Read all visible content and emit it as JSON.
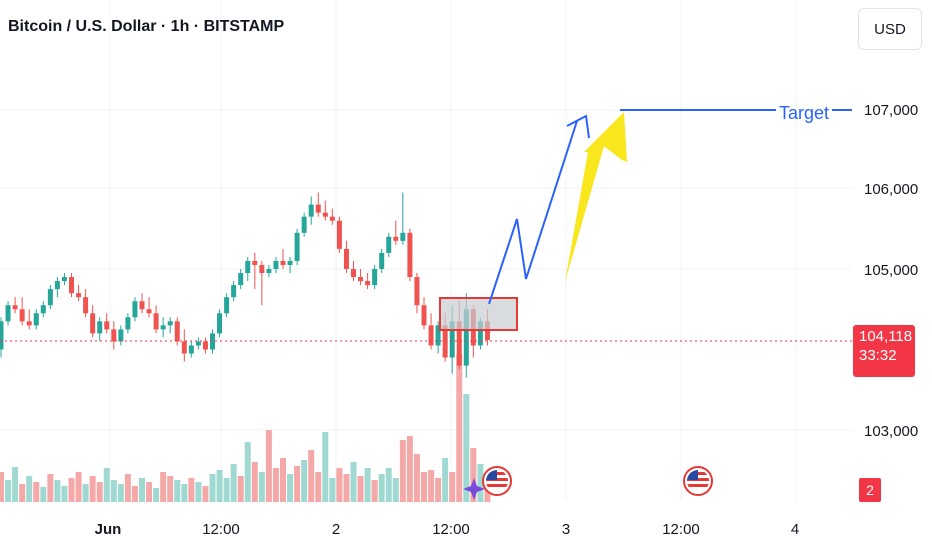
{
  "header": {
    "title": "Bitcoin / U.S. Dollar · 1h · BITSTAMP",
    "currency_button": "USD"
  },
  "price_tag": {
    "price": "104,118",
    "countdown": "33:32"
  },
  "events_badge": "2",
  "colors": {
    "up": "#26a69a",
    "down": "#ef5350",
    "vol_up": "#9fd9d2",
    "vol_down": "#f4a9a8",
    "projection": "#2962ff",
    "arrow": "#f8e71c",
    "box": "#e53935",
    "price_line": "#f23645"
  },
  "annotations": {
    "target_label": "Target",
    "target_price": 107000,
    "box_range": [
      104150,
      104680
    ]
  },
  "chart_data": {
    "type": "candlestick",
    "title": "Bitcoin / U.S. Dollar · 1h · BITSTAMP",
    "current_price": 104118,
    "y_ticks": [
      "103,000",
      "105,000",
      "106,000",
      "107,000"
    ],
    "y_tick_values": [
      103000,
      105000,
      106000,
      107000
    ],
    "ylim": [
      102200,
      107800
    ],
    "x_labels": [
      "Jun",
      "12:00",
      "2",
      "12:00",
      "3",
      "12:00",
      "4"
    ],
    "grid": true,
    "candles": [
      [
        104000,
        104400,
        103900,
        104350
      ],
      [
        104350,
        104600,
        104300,
        104550
      ],
      [
        104550,
        104650,
        104450,
        104500
      ],
      [
        104500,
        104650,
        104300,
        104350
      ],
      [
        104350,
        104500,
        104250,
        104300
      ],
      [
        104300,
        104500,
        104250,
        104450
      ],
      [
        104450,
        104600,
        104400,
        104550
      ],
      [
        104550,
        104800,
        104500,
        104750
      ],
      [
        104750,
        104900,
        104650,
        104850
      ],
      [
        104850,
        104950,
        104800,
        104900
      ],
      [
        104900,
        104950,
        104650,
        104700
      ],
      [
        104700,
        104800,
        104600,
        104650
      ],
      [
        104650,
        104750,
        104400,
        104450
      ],
      [
        104450,
        104550,
        104150,
        104200
      ],
      [
        104200,
        104400,
        104100,
        104350
      ],
      [
        104350,
        104450,
        104200,
        104250
      ],
      [
        104250,
        104350,
        104000,
        104100
      ],
      [
        104100,
        104300,
        104050,
        104250
      ],
      [
        104250,
        104450,
        104200,
        104400
      ],
      [
        104400,
        104650,
        104350,
        104600
      ],
      [
        104600,
        104700,
        104450,
        104500
      ],
      [
        104500,
        104650,
        104400,
        104450
      ],
      [
        104450,
        104550,
        104200,
        104250
      ],
      [
        104250,
        104400,
        104150,
        104300
      ],
      [
        104300,
        104400,
        104200,
        104350
      ],
      [
        104350,
        104400,
        104050,
        104100
      ],
      [
        104100,
        104250,
        103850,
        103950
      ],
      [
        103950,
        104100,
        103900,
        104050
      ],
      [
        104050,
        104150,
        104000,
        104100
      ],
      [
        104100,
        104150,
        103950,
        104000
      ],
      [
        104000,
        104250,
        103950,
        104200
      ],
      [
        104200,
        104500,
        104150,
        104450
      ],
      [
        104450,
        104700,
        104400,
        104650
      ],
      [
        104650,
        104850,
        104600,
        104800
      ],
      [
        104800,
        105000,
        104750,
        104950
      ],
      [
        104950,
        105150,
        104850,
        105100
      ],
      [
        105100,
        105200,
        104750,
        105050
      ],
      [
        105050,
        105100,
        104550,
        104950
      ],
      [
        104950,
        105050,
        104900,
        105000
      ],
      [
        105000,
        105150,
        104950,
        105100
      ],
      [
        105100,
        105250,
        105000,
        105050
      ],
      [
        105050,
        105150,
        104950,
        105100
      ],
      [
        105100,
        105500,
        105050,
        105450
      ],
      [
        105450,
        105700,
        105400,
        105650
      ],
      [
        105650,
        105900,
        105550,
        105800
      ],
      [
        105800,
        105950,
        105650,
        105700
      ],
      [
        105700,
        105850,
        105600,
        105650
      ],
      [
        105650,
        105750,
        105550,
        105600
      ],
      [
        105600,
        105650,
        105200,
        105250
      ],
      [
        105250,
        105350,
        104950,
        105000
      ],
      [
        105000,
        105100,
        104850,
        104900
      ],
      [
        104900,
        105000,
        104800,
        104850
      ],
      [
        104850,
        104950,
        104750,
        104800
      ],
      [
        104800,
        105050,
        104750,
        105000
      ],
      [
        105000,
        105250,
        104950,
        105200
      ],
      [
        105200,
        105450,
        105150,
        105400
      ],
      [
        105400,
        105600,
        105300,
        105350
      ],
      [
        105350,
        105950,
        105300,
        105450
      ],
      [
        105450,
        105500,
        104850,
        104900
      ],
      [
        104900,
        104950,
        104450,
        104550
      ],
      [
        104550,
        104650,
        104250,
        104300
      ],
      [
        104300,
        104450,
        104000,
        104050
      ],
      [
        104050,
        104350,
        103950,
        104300
      ],
      [
        104300,
        104450,
        103850,
        103900
      ],
      [
        103900,
        104550,
        103700,
        104350
      ],
      [
        104350,
        104600,
        103750,
        103800
      ],
      [
        103800,
        104700,
        103650,
        104500
      ],
      [
        104500,
        104550,
        103900,
        104050
      ],
      [
        104050,
        104400,
        104000,
        104350
      ],
      [
        104350,
        104500,
        104050,
        104118
      ]
    ],
    "volume": [
      [
        30,
        "down"
      ],
      [
        22,
        "up"
      ],
      [
        35,
        "up"
      ],
      [
        18,
        "down"
      ],
      [
        26,
        "up"
      ],
      [
        20,
        "down"
      ],
      [
        15,
        "up"
      ],
      [
        28,
        "down"
      ],
      [
        22,
        "up"
      ],
      [
        16,
        "up"
      ],
      [
        24,
        "down"
      ],
      [
        30,
        "down"
      ],
      [
        18,
        "up"
      ],
      [
        26,
        "down"
      ],
      [
        20,
        "down"
      ],
      [
        34,
        "up"
      ],
      [
        22,
        "up"
      ],
      [
        18,
        "up"
      ],
      [
        28,
        "down"
      ],
      [
        16,
        "down"
      ],
      [
        24,
        "up"
      ],
      [
        20,
        "down"
      ],
      [
        14,
        "up"
      ],
      [
        30,
        "down"
      ],
      [
        26,
        "down"
      ],
      [
        22,
        "up"
      ],
      [
        18,
        "up"
      ],
      [
        24,
        "down"
      ],
      [
        20,
        "up"
      ],
      [
        16,
        "down"
      ],
      [
        28,
        "up"
      ],
      [
        32,
        "up"
      ],
      [
        24,
        "up"
      ],
      [
        38,
        "up"
      ],
      [
        26,
        "down"
      ],
      [
        60,
        "up"
      ],
      [
        40,
        "down"
      ],
      [
        30,
        "up"
      ],
      [
        72,
        "down"
      ],
      [
        34,
        "down"
      ],
      [
        44,
        "down"
      ],
      [
        28,
        "up"
      ],
      [
        36,
        "down"
      ],
      [
        42,
        "up"
      ],
      [
        52,
        "down"
      ],
      [
        30,
        "down"
      ],
      [
        70,
        "up"
      ],
      [
        24,
        "up"
      ],
      [
        34,
        "down"
      ],
      [
        28,
        "down"
      ],
      [
        40,
        "up"
      ],
      [
        26,
        "down"
      ],
      [
        34,
        "up"
      ],
      [
        22,
        "down"
      ],
      [
        28,
        "up"
      ],
      [
        34,
        "up"
      ],
      [
        24,
        "up"
      ],
      [
        62,
        "down"
      ],
      [
        66,
        "down"
      ],
      [
        48,
        "down"
      ],
      [
        30,
        "down"
      ],
      [
        32,
        "down"
      ],
      [
        24,
        "down"
      ],
      [
        44,
        "up"
      ],
      [
        30,
        "down"
      ],
      [
        148,
        "down"
      ],
      [
        108,
        "up"
      ],
      [
        54,
        "down"
      ],
      [
        38,
        "up"
      ],
      [
        30,
        "down"
      ]
    ],
    "projection_path_prices": [
      104650,
      105650,
      104900,
      106850,
      107000,
      107000
    ],
    "projection_path_bar_offsets": [
      0,
      3,
      4,
      9,
      11,
      33
    ]
  }
}
